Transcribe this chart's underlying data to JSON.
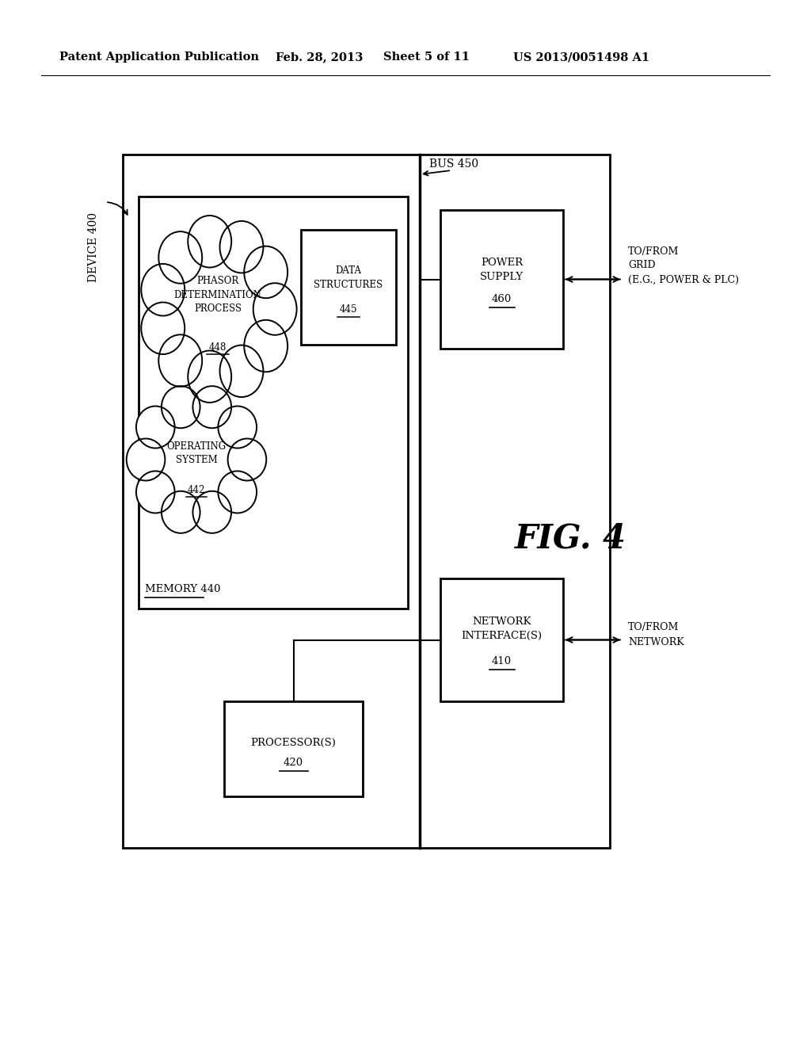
{
  "bg_color": "#ffffff",
  "header_text": "Patent Application Publication",
  "header_date": "Feb. 28, 2013",
  "header_sheet": "Sheet 5 of 11",
  "header_patent": "US 2013/0051498 A1",
  "fig_label": "FIG. 4",
  "device_label": "DEVICE 400",
  "bus_label": "BUS 450",
  "memory_label": "MEMORY 440",
  "phasor_line1": "PHASOR",
  "phasor_line2": "DETERMINATION",
  "phasor_line3": "PROCESS",
  "phasor_num": "448",
  "os_line1": "OPERATING",
  "os_line2": "SYSTEM",
  "os_num": "442",
  "ds_line1": "DATA",
  "ds_line2": "STRUCTURES",
  "ds_num": "445",
  "ps_line1": "POWER",
  "ps_line2": "SUPPLY",
  "ps_num": "460",
  "ni_line1": "NETWORK",
  "ni_line2": "INTERFACE(S)",
  "ni_num": "410",
  "proc_line1": "PROCESSOR(S)",
  "proc_num": "420",
  "grid_label": "TO/FROM\nGRID\n(E.G., POWER & PLC)",
  "net_label": "TO/FROM\nNETWORK"
}
